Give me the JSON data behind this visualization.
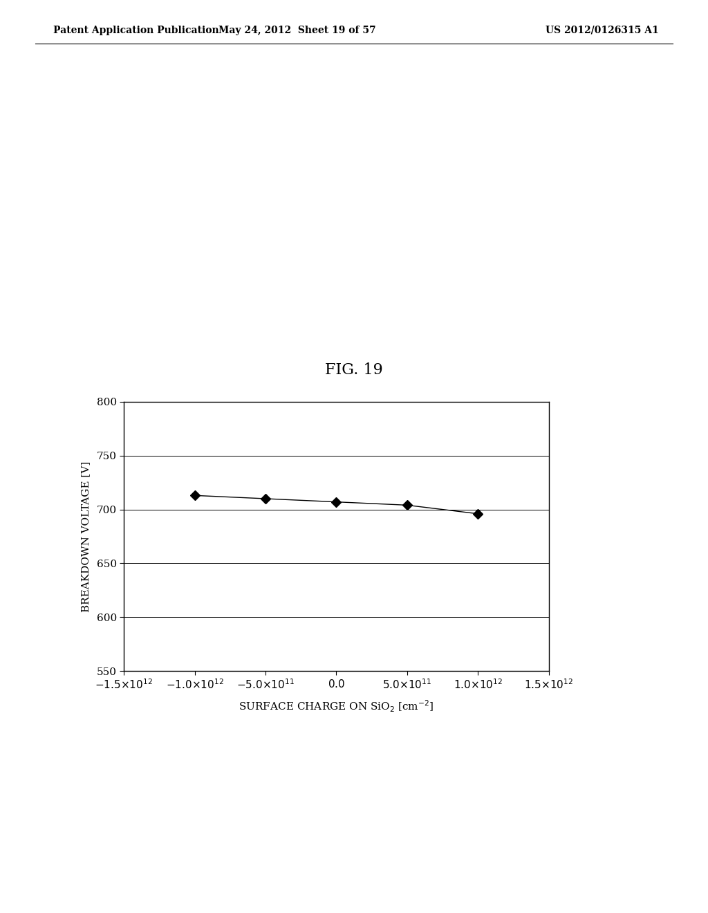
{
  "title": "FIG. 19",
  "header_left": "Patent Application Publication",
  "header_center": "May 24, 2012  Sheet 19 of 57",
  "header_right": "US 2012/0126315 A1",
  "ylabel": "BREAKDOWN VOLTAGE [V]",
  "xlim": [
    -1500000000000.0,
    1500000000000.0
  ],
  "ylim": [
    550,
    800
  ],
  "yticks": [
    550,
    600,
    650,
    700,
    750,
    800
  ],
  "xtick_values": [
    -1500000000000.0,
    -1000000000000.0,
    -500000000000.0,
    0.0,
    500000000000.0,
    1000000000000.0,
    1500000000000.0
  ],
  "x_data": [
    -1000000000000.0,
    -500000000000.0,
    0.0,
    500000000000.0,
    1000000000000.0
  ],
  "y_data": [
    713,
    710,
    707,
    704,
    696
  ],
  "marker": "D",
  "marker_size": 7,
  "line_color": "black",
  "marker_color": "black",
  "background_color": "white",
  "fig_title_fontsize": 16,
  "axis_label_fontsize": 11,
  "tick_label_fontsize": 11,
  "header_fontsize": 10
}
